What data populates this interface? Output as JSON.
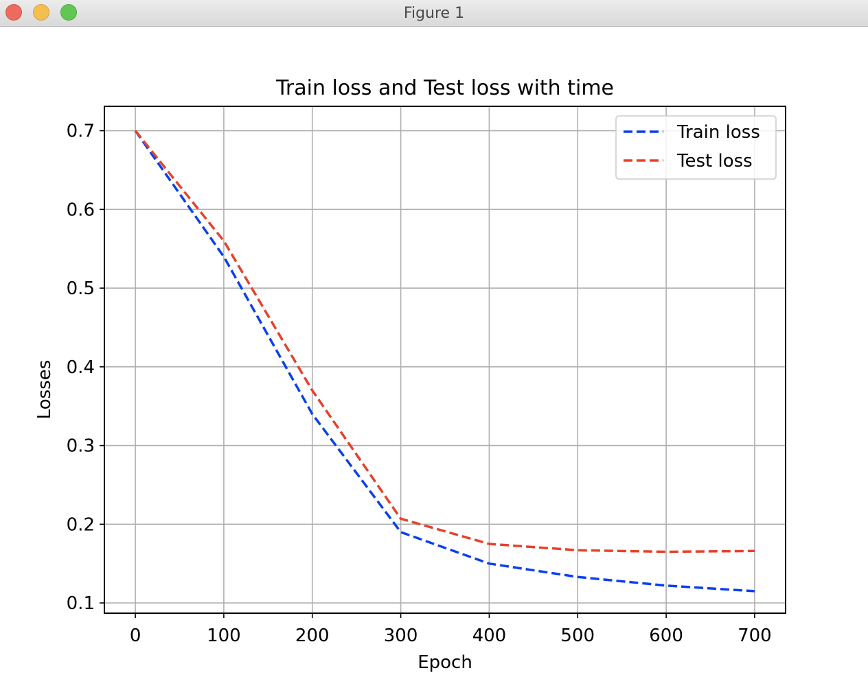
{
  "window": {
    "title": "Figure 1",
    "buttons": [
      "close",
      "minimize",
      "zoom"
    ]
  },
  "chart_data": {
    "type": "line",
    "title": "Train loss and Test loss with time",
    "xlabel": "Epoch",
    "ylabel": "Losses",
    "x": [
      0,
      100,
      200,
      300,
      400,
      500,
      600,
      700
    ],
    "xlim": [
      -35,
      735
    ],
    "ylim": [
      0.087,
      0.731
    ],
    "xticks": [
      0,
      100,
      200,
      300,
      400,
      500,
      600,
      700
    ],
    "xtick_labels": [
      "0",
      "100",
      "200",
      "300",
      "400",
      "500",
      "600",
      "700"
    ],
    "yticks": [
      0.1,
      0.2,
      0.3,
      0.4,
      0.5,
      0.6,
      0.7
    ],
    "ytick_labels": [
      "0.1",
      "0.2",
      "0.3",
      "0.4",
      "0.5",
      "0.6",
      "0.7"
    ],
    "grid": true,
    "legend_position": "top-right",
    "series": [
      {
        "name": "Train loss",
        "color": "#0a3ff0",
        "style": "dashed",
        "values": [
          0.7,
          0.54,
          0.34,
          0.19,
          0.15,
          0.133,
          0.122,
          0.115
        ]
      },
      {
        "name": "Test loss",
        "color": "#e8402a",
        "style": "dashed",
        "values": [
          0.7,
          0.56,
          0.37,
          0.207,
          0.175,
          0.167,
          0.165,
          0.166
        ]
      }
    ]
  }
}
